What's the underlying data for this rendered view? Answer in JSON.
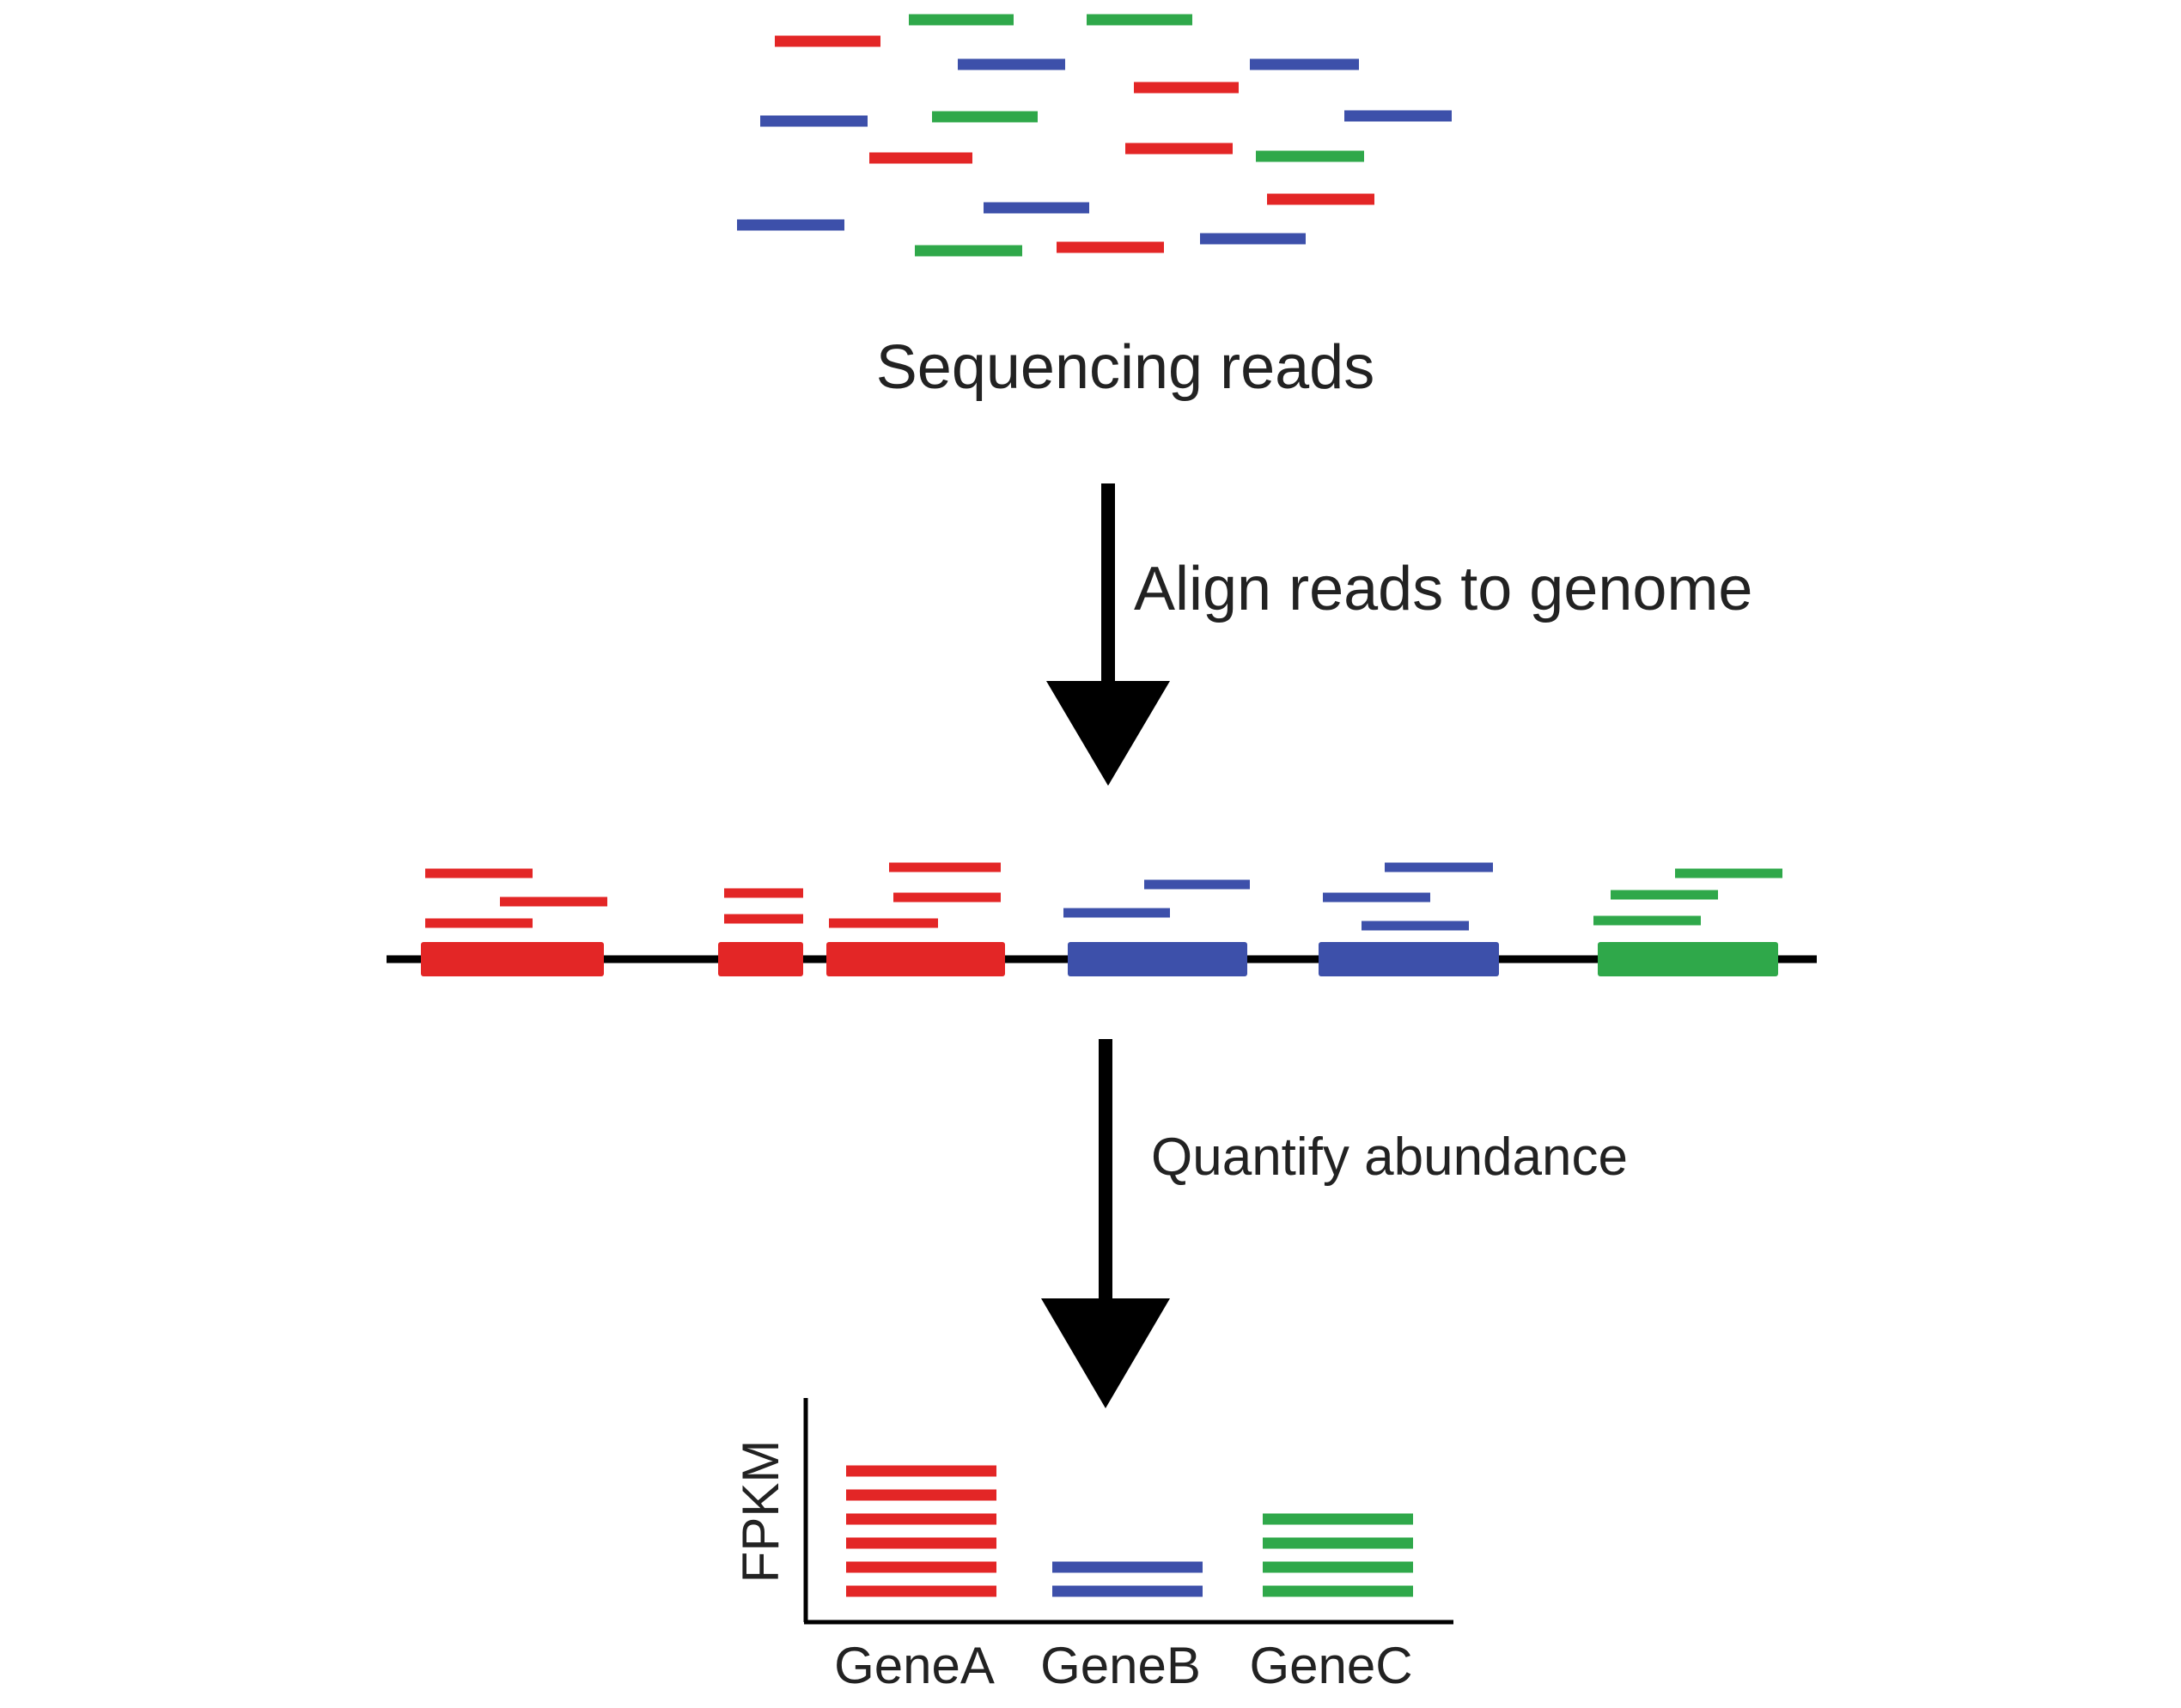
{
  "colors": {
    "gene_a": "#e32626",
    "gene_b": "#3d50aa",
    "gene_c": "#2fa84a",
    "ink": "#000000",
    "text": "#222222"
  },
  "steps": {
    "reads_label": "Sequencing reads",
    "align_label": "Align reads to genome",
    "quantify_label": "Quantify abundance"
  },
  "chart_data": {
    "type": "bar",
    "ylabel": "FPKM",
    "xlabel": "",
    "categories": [
      "GeneA",
      "GeneB",
      "GeneC"
    ],
    "values": [
      6,
      2,
      4
    ],
    "series_colors": [
      "#e32626",
      "#3d50aa",
      "#2fa84a"
    ]
  }
}
